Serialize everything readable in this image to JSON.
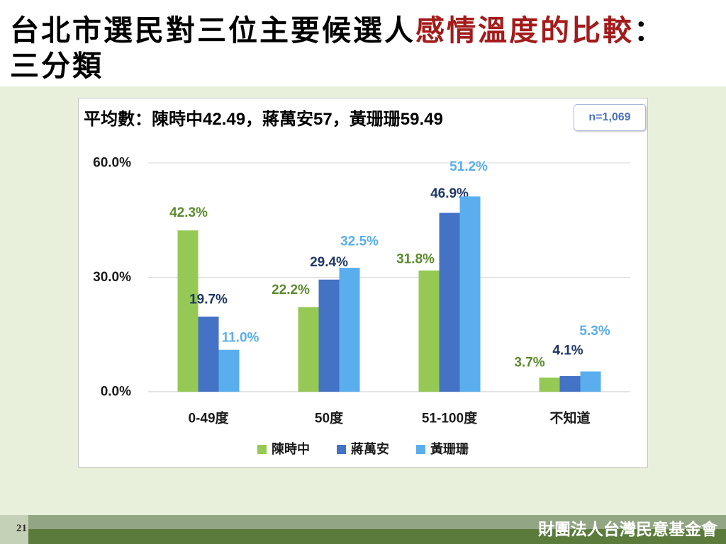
{
  "title": {
    "part1": "台北市選民對三位主要候選人",
    "part2": "感情溫度的比較",
    "part3": "：",
    "line2": "三分類",
    "highlight_color": "#a31b1b"
  },
  "chart_data": {
    "type": "bar",
    "subtitle": "平均數：陳時中42.49，蔣萬安57，黃珊珊59.49",
    "annotation": "n=1,069",
    "categories": [
      "0-49度",
      "50度",
      "51-100度",
      "不知道"
    ],
    "series": [
      {
        "name": "陳時中",
        "values": [
          42.3,
          22.2,
          31.8,
          3.7
        ],
        "labels": [
          "42.3%",
          "22.2%",
          "31.8%",
          "3.7%"
        ],
        "color": "#95c855",
        "label_color": "#5b8a2e"
      },
      {
        "name": "蔣萬安",
        "values": [
          19.7,
          29.4,
          46.9,
          4.1
        ],
        "labels": [
          "19.7%",
          "29.4%",
          "46.9%",
          "4.1%"
        ],
        "color": "#4472c4",
        "label_color": "#1f3864"
      },
      {
        "name": "黃珊珊",
        "values": [
          11.0,
          32.5,
          51.2,
          5.3
        ],
        "labels": [
          "11.0%",
          "32.5%",
          "51.2%",
          "5.3%"
        ],
        "color": "#5aaeee",
        "label_color": "#5aaeee"
      }
    ],
    "ylim": [
      0,
      60
    ],
    "yticks": [
      0,
      30,
      60
    ],
    "ytick_labels": [
      "0.0%",
      "30.0%",
      "60.0%"
    ],
    "grid": true,
    "legend": "bottom"
  },
  "footer": {
    "page_number": "21",
    "organization": "財團法人台灣民意基金會"
  }
}
